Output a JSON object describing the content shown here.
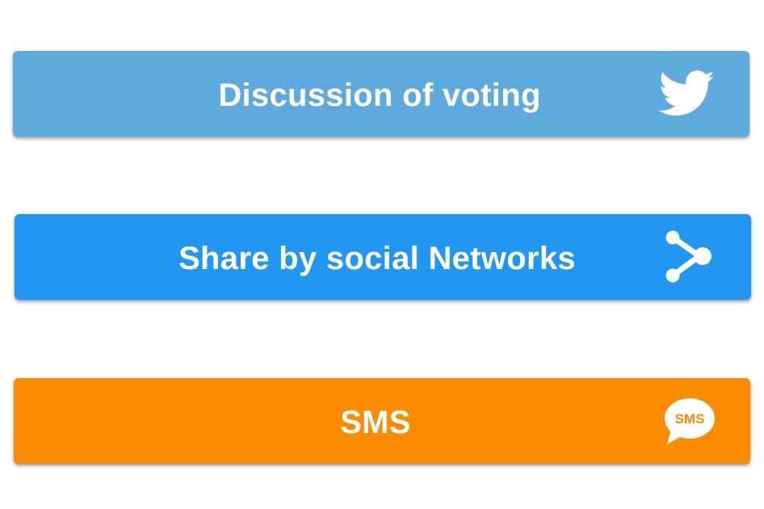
{
  "buttons": [
    {
      "label": "Discussion of voting",
      "icon": "twitter-icon",
      "color": "#5ea9dd"
    },
    {
      "label": "Share by social Networks",
      "icon": "share-icon",
      "color": "#2196f3"
    },
    {
      "label": "SMS",
      "icon": "sms-icon",
      "color": "#fb8c00",
      "icon_text": "SMS"
    }
  ]
}
